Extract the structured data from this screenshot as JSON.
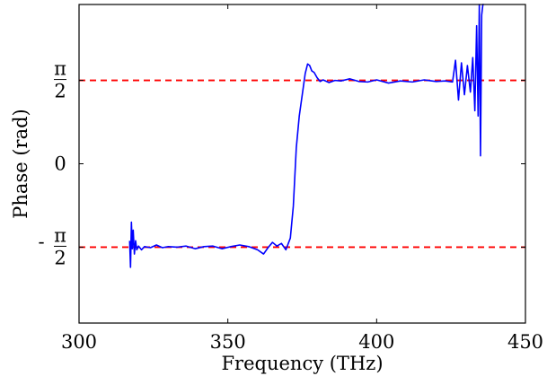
{
  "chart_data": {
    "type": "line",
    "title": "",
    "xlabel": "Frequency (THz)",
    "ylabel": "Phase (rad)",
    "xlim": [
      300,
      450
    ],
    "ylim": [
      -3.0,
      3.0
    ],
    "grid": false,
    "x_ticks": [
      {
        "value": 300,
        "label": "300"
      },
      {
        "value": 350,
        "label": "350"
      },
      {
        "value": 400,
        "label": "400"
      },
      {
        "value": 450,
        "label": "450"
      }
    ],
    "y_ticks": [
      {
        "value": -1.5708,
        "sign": "-",
        "numerator": "π",
        "denominator": "2"
      },
      {
        "value": 0,
        "sign": "",
        "numerator": "0",
        "denominator": ""
      },
      {
        "value": 1.5708,
        "sign": "",
        "numerator": "π",
        "denominator": "2"
      }
    ],
    "reference_lines": [
      {
        "y": 1.5708,
        "color": "#ff0000",
        "style": "dashed"
      },
      {
        "y": -1.5708,
        "color": "#ff0000",
        "style": "dashed"
      }
    ],
    "series": [
      {
        "color": "#0000ff",
        "x": [
          317.0,
          317.3,
          317.6,
          317.9,
          318.2,
          318.6,
          319.0,
          319.4,
          320.0,
          321.0,
          322.0,
          324.0,
          326.0,
          328.0,
          330.0,
          333.0,
          336.0,
          339.0,
          342.0,
          345.0,
          348.0,
          351.0,
          354.0,
          357.0,
          360.0,
          362.0,
          363.5,
          365.0,
          366.5,
          368.0,
          369.5,
          371.0,
          372.0,
          373.0,
          374.0,
          375.0,
          376.0,
          376.8,
          377.5,
          378.2,
          379.0,
          380.0,
          381.0,
          382.0,
          384.0,
          386.0,
          388.0,
          391.0,
          394.0,
          397.0,
          400.0,
          404.0,
          408.0,
          412.0,
          416.0,
          420.0,
          423.0,
          425.5,
          426.5,
          427.5,
          428.5,
          429.5,
          430.5,
          431.5,
          432.3,
          433.0,
          433.6,
          434.1,
          434.5,
          434.9,
          435.3,
          435.7,
          436.0
        ],
        "y": [
          -1.45,
          -1.95,
          -1.1,
          -1.6,
          -1.25,
          -1.7,
          -1.45,
          -1.62,
          -1.55,
          -1.62,
          -1.56,
          -1.58,
          -1.53,
          -1.58,
          -1.56,
          -1.57,
          -1.55,
          -1.6,
          -1.56,
          -1.55,
          -1.6,
          -1.56,
          -1.53,
          -1.56,
          -1.62,
          -1.7,
          -1.58,
          -1.48,
          -1.55,
          -1.5,
          -1.62,
          -1.4,
          -0.8,
          0.3,
          0.9,
          1.3,
          1.7,
          1.88,
          1.85,
          1.75,
          1.72,
          1.62,
          1.55,
          1.58,
          1.53,
          1.57,
          1.56,
          1.6,
          1.55,
          1.54,
          1.58,
          1.52,
          1.56,
          1.54,
          1.58,
          1.55,
          1.56,
          1.54,
          1.95,
          1.2,
          1.9,
          1.3,
          1.85,
          1.35,
          2.0,
          1.0,
          2.6,
          0.9,
          3.3,
          0.15,
          2.8,
          3.1,
          3.05
        ]
      }
    ]
  }
}
